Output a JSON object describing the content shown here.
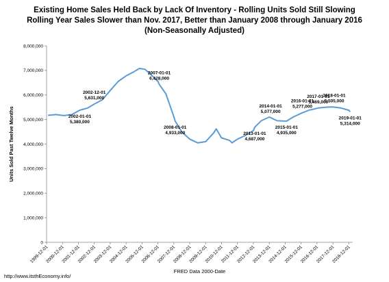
{
  "chart_data": {
    "type": "line",
    "title": "Existing Home Sales Held Back by Lack Of Inventory  - Rolling Units Sold Still Slowing",
    "subtitle": "Rolling Year Sales Slower than Nov. 2017, Better than January 2008 through  January 2016",
    "subtitle2": "(Non-Seasonally Adjusted)",
    "xlabel": "FRED Data 2000-Date",
    "ylabel": "Units Sold Past Twelve Months",
    "credit": "http://www.itsthEconomy.info/",
    "ylim": [
      0,
      8000000
    ],
    "y_ticks": [
      "0",
      "1,000,000",
      "2,000,000",
      "3,000,000",
      "4,000,000",
      "5,000,000",
      "6,000,000",
      "7,000,000",
      "8,000,000"
    ],
    "x_ticks": [
      "1999-12-01",
      "2000-12-01",
      "2001-12-01",
      "2002-12-01",
      "2003-12-01",
      "2004-12-01",
      "2005-12-01",
      "2006-12-01",
      "2007-12-01",
      "2008-12-01",
      "2009-12-01",
      "2010-12-01",
      "2011-12-01",
      "2012-12-01",
      "2013-12-01",
      "2014-12-01",
      "2015-12-01",
      "2016-12-01",
      "2017-12-01",
      "2018-12-01"
    ],
    "series_color": "#5b9bd5",
    "series": [
      {
        "name": "",
        "points": [
          [
            "2000-01-01",
            5170000
          ],
          [
            "2000-07-01",
            5200000
          ],
          [
            "2001-01-01",
            5160000
          ],
          [
            "2001-07-01",
            5200000
          ],
          [
            "2002-01-01",
            5380000
          ],
          [
            "2002-07-01",
            5470000
          ],
          [
            "2002-12-01",
            5631000
          ],
          [
            "2003-06-01",
            5800000
          ],
          [
            "2003-12-01",
            6180000
          ],
          [
            "2004-06-01",
            6550000
          ],
          [
            "2004-12-01",
            6780000
          ],
          [
            "2005-06-01",
            6950000
          ],
          [
            "2005-10-01",
            7080000
          ],
          [
            "2006-02-01",
            7050000
          ],
          [
            "2006-06-01",
            6870000
          ],
          [
            "2006-12-01",
            6550000
          ],
          [
            "2007-01-01",
            6428000
          ],
          [
            "2007-06-01",
            6050000
          ],
          [
            "2007-12-01",
            5120000
          ],
          [
            "2008-01-01",
            4933000
          ],
          [
            "2008-06-01",
            4500000
          ],
          [
            "2008-12-01",
            4200000
          ],
          [
            "2009-06-01",
            4050000
          ],
          [
            "2009-12-01",
            4100000
          ],
          [
            "2010-06-01",
            4450000
          ],
          [
            "2010-08-01",
            4620000
          ],
          [
            "2010-12-01",
            4250000
          ],
          [
            "2011-06-01",
            4150000
          ],
          [
            "2011-08-01",
            4050000
          ],
          [
            "2011-12-01",
            4200000
          ],
          [
            "2012-06-01",
            4350000
          ],
          [
            "2012-12-01",
            4550000
          ],
          [
            "2013-01-01",
            4687000
          ],
          [
            "2013-06-01",
            4950000
          ],
          [
            "2013-12-01",
            5100000
          ],
          [
            "2014-01-01",
            5077000
          ],
          [
            "2014-06-01",
            4950000
          ],
          [
            "2015-01-01",
            4935000
          ],
          [
            "2015-06-01",
            5100000
          ],
          [
            "2016-01-01",
            5277000
          ],
          [
            "2016-06-01",
            5380000
          ],
          [
            "2017-01-01",
            5469000
          ],
          [
            "2017-06-01",
            5500000
          ],
          [
            "2017-11-01",
            5510000
          ],
          [
            "2018-01-01",
            5505000
          ],
          [
            "2018-06-01",
            5470000
          ],
          [
            "2018-12-01",
            5380000
          ],
          [
            "2019-01-01",
            5314000
          ]
        ]
      }
    ],
    "annotations": [
      {
        "date": "2002-01-01",
        "value": "5,380,000",
        "pos": "below"
      },
      {
        "date": "2002-12-01",
        "value": "5,631,000",
        "pos": "above"
      },
      {
        "date": "2007-01-01",
        "value": "6,428,000",
        "pos": "above"
      },
      {
        "date": "2008-01-01",
        "value": "4,933,000",
        "pos": "below"
      },
      {
        "date": "2013-01-01",
        "value": "4,687,000",
        "pos": "below"
      },
      {
        "date": "2014-01-01",
        "value": "5,077,000",
        "pos": "above"
      },
      {
        "date": "2015-01-01",
        "value": "4,935,000",
        "pos": "below"
      },
      {
        "date": "2016-01-01",
        "value": "5,277,000",
        "pos": "above"
      },
      {
        "date": "2017-01-01",
        "value": "5,469,000",
        "pos": "above"
      },
      {
        "date": "2018-01-01",
        "value": "5,505,000",
        "pos": "above"
      },
      {
        "date": "2019-01-01",
        "value": "5,314,000",
        "pos": "below"
      }
    ]
  }
}
